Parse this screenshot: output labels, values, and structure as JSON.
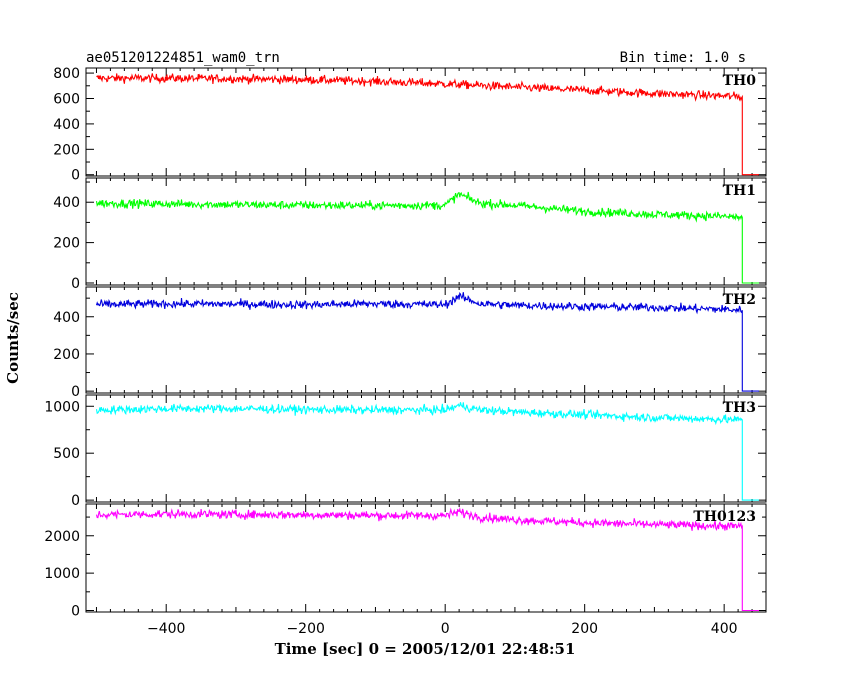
{
  "header": {
    "title": "ae051201224851_wam0_trn",
    "bin_time": "Bin time: 1.0 s"
  },
  "xlabel": "Time [sec] 0 = 2005/12/01 22:48:51",
  "ylabel": "Counts/sec",
  "chart_data": {
    "type": "line",
    "xlim": [
      -515,
      460
    ],
    "x_ticks": [
      -400,
      -200,
      0,
      200,
      400
    ],
    "x_tick_labels": [
      "−400",
      "−200",
      "0",
      "200",
      "400"
    ],
    "panels": [
      {
        "name": "TH0",
        "color": "#ff0000",
        "ylim": [
          -10,
          840
        ],
        "y_ticks": [
          0,
          200,
          400,
          600,
          800
        ],
        "y_tick_labels": [
          "0",
          "200",
          "400",
          "600",
          "800"
        ],
        "x": [
          -500,
          -400,
          -300,
          -200,
          -100,
          0,
          100,
          200,
          300,
          400,
          425,
          426,
          450
        ],
        "values": [
          760,
          760,
          755,
          748,
          735,
          715,
          690,
          665,
          640,
          620,
          615,
          0,
          0
        ]
      },
      {
        "name": "TH1",
        "color": "#00ff00",
        "ylim": [
          -10,
          520
        ],
        "y_ticks": [
          0,
          200,
          400
        ],
        "y_tick_labels": [
          "0",
          "200",
          "400"
        ],
        "x": [
          -500,
          -400,
          -300,
          -200,
          -100,
          0,
          20,
          50,
          100,
          200,
          300,
          400,
          425,
          426,
          450
        ],
        "values": [
          395,
          392,
          388,
          385,
          384,
          385,
          440,
          395,
          385,
          355,
          340,
          330,
          325,
          0,
          0
        ]
      },
      {
        "name": "TH2",
        "color": "#0000dd",
        "ylim": [
          -10,
          560
        ],
        "y_ticks": [
          0,
          200,
          400
        ],
        "y_tick_labels": [
          "0",
          "200",
          "400"
        ],
        "x": [
          -500,
          -400,
          -300,
          -200,
          -100,
          0,
          20,
          50,
          100,
          200,
          300,
          400,
          425,
          426,
          450
        ],
        "values": [
          465,
          470,
          468,
          465,
          470,
          465,
          510,
          470,
          462,
          455,
          450,
          440,
          435,
          0,
          0
        ]
      },
      {
        "name": "TH3",
        "color": "#00ffff",
        "ylim": [
          -20,
          1120
        ],
        "y_ticks": [
          0,
          500,
          1000
        ],
        "y_tick_labels": [
          "0",
          "500",
          "1000"
        ],
        "x": [
          -500,
          -400,
          -300,
          -200,
          -100,
          0,
          20,
          50,
          100,
          200,
          300,
          400,
          425,
          426,
          450
        ],
        "values": [
          960,
          975,
          975,
          965,
          960,
          960,
          1010,
          960,
          940,
          910,
          880,
          860,
          855,
          0,
          0
        ]
      },
      {
        "name": "TH0123",
        "color": "#ff00ff",
        "ylim": [
          -40,
          2850
        ],
        "y_ticks": [
          0,
          1000,
          2000
        ],
        "y_tick_labels": [
          "0",
          "1000",
          "2000"
        ],
        "x": [
          -500,
          -400,
          -300,
          -200,
          -100,
          0,
          20,
          50,
          100,
          200,
          300,
          400,
          425,
          426,
          450
        ],
        "values": [
          2560,
          2580,
          2570,
          2560,
          2545,
          2540,
          2640,
          2500,
          2430,
          2350,
          2300,
          2260,
          2250,
          0,
          0
        ]
      }
    ]
  }
}
